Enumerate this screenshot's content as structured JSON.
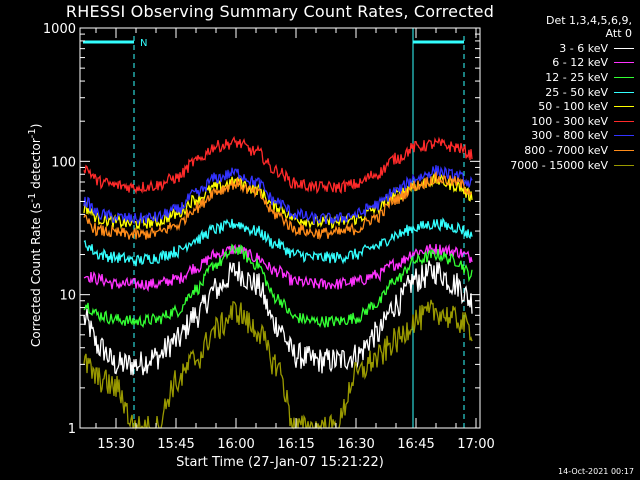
{
  "chart_data": {
    "type": "line",
    "title": "RHESSI Observing Summary Count Rates, Corrected",
    "xlabel": "Start Time (27-Jan-07 15:21:22)",
    "ylabel_main": "Corrected Count Rate (s",
    "ylabel_sup1": "-1",
    "ylabel_mid": " detector",
    "ylabel_sup2": "-1",
    "ylabel_end": ")",
    "y_scale": "log",
    "ylim": [
      1,
      1000
    ],
    "y_ticks": [
      "1",
      "10",
      "100",
      "1000"
    ],
    "xlim": [
      "15:21",
      "17:01"
    ],
    "x_ticks": [
      "15:30",
      "15:45",
      "16:00",
      "16:15",
      "16:30",
      "16:45",
      "17:00"
    ],
    "grid": false,
    "legend_header": [
      "Det 1,3,4,5,6,9,",
      "Att 0"
    ],
    "legend_placement": "right",
    "night_marker_label": "N",
    "series": [
      {
        "name": "3 - 6 keV",
        "color": "#ffffff",
        "x": [
          "15:22",
          "15:26",
          "15:30",
          "15:35",
          "15:40",
          "15:45",
          "15:50",
          "15:55",
          "16:00",
          "16:05",
          "16:10",
          "16:15",
          "16:20",
          "16:25",
          "16:30",
          "16:35",
          "16:40",
          "16:45",
          "16:50",
          "16:55",
          "16:59"
        ],
        "y": [
          6.5,
          4.0,
          3.0,
          3.0,
          3.4,
          4.5,
          7.0,
          11,
          15,
          12,
          6.0,
          3.5,
          3.2,
          3.2,
          3.5,
          5.0,
          8.5,
          13,
          15,
          12,
          9.0
        ]
      },
      {
        "name": "6 - 12 keV",
        "color": "#ff33ff",
        "x": [
          "15:22",
          "15:26",
          "15:30",
          "15:35",
          "15:40",
          "15:45",
          "15:50",
          "15:55",
          "16:00",
          "16:05",
          "16:10",
          "16:15",
          "16:20",
          "16:25",
          "16:30",
          "16:35",
          "16:40",
          "16:45",
          "16:50",
          "16:55",
          "16:59"
        ],
        "y": [
          14,
          13,
          12,
          12,
          12,
          13,
          16,
          20,
          22,
          19,
          15,
          12.5,
          12,
          12,
          12.5,
          14,
          17,
          21,
          22,
          21,
          19
        ]
      },
      {
        "name": "12 - 25 keV",
        "color": "#33ff33",
        "x": [
          "15:22",
          "15:26",
          "15:30",
          "15:35",
          "15:40",
          "15:45",
          "15:50",
          "15:55",
          "16:00",
          "16:05",
          "16:10",
          "16:15",
          "16:20",
          "16:25",
          "16:30",
          "16:35",
          "16:40",
          "16:45",
          "16:50",
          "16:55",
          "16:59"
        ],
        "y": [
          8.5,
          7.0,
          6.5,
          6.3,
          6.5,
          7.5,
          11,
          17,
          22,
          17,
          9.5,
          6.7,
          6.3,
          6.3,
          6.7,
          8.5,
          13,
          18,
          20,
          18,
          14
        ]
      },
      {
        "name": "25 - 50 keV",
        "color": "#33ffff",
        "x": [
          "15:22",
          "15:26",
          "15:30",
          "15:35",
          "15:40",
          "15:45",
          "15:50",
          "15:55",
          "16:00",
          "16:05",
          "16:10",
          "16:15",
          "16:20",
          "16:25",
          "16:30",
          "16:35",
          "16:40",
          "16:45",
          "16:50",
          "16:55",
          "16:59"
        ],
        "y": [
          24,
          20,
          19,
          18,
          19,
          21,
          26,
          31,
          34,
          30,
          24,
          20,
          19,
          19,
          20,
          23,
          28,
          32,
          34,
          32,
          28
        ]
      },
      {
        "name": "50 - 100 keV",
        "color": "#ffff00",
        "x": [
          "15:22",
          "15:26",
          "15:30",
          "15:35",
          "15:40",
          "15:45",
          "15:50",
          "15:55",
          "16:00",
          "16:05",
          "16:10",
          "16:15",
          "16:20",
          "16:25",
          "16:30",
          "16:35",
          "16:40",
          "16:45",
          "16:50",
          "16:55",
          "16:59"
        ],
        "y": [
          45,
          37,
          35,
          34,
          35,
          40,
          52,
          64,
          70,
          62,
          46,
          37,
          35,
          35,
          37,
          44,
          56,
          66,
          72,
          66,
          55
        ]
      },
      {
        "name": "100 - 300 keV",
        "color": "#ff2a2a",
        "x": [
          "15:22",
          "15:26",
          "15:30",
          "15:35",
          "15:40",
          "15:45",
          "15:50",
          "15:55",
          "16:00",
          "16:05",
          "16:10",
          "16:15",
          "16:20",
          "16:25",
          "16:30",
          "16:35",
          "16:40",
          "16:45",
          "16:50",
          "16:55",
          "16:59"
        ],
        "y": [
          90,
          70,
          66,
          64,
          66,
          75,
          100,
          130,
          138,
          118,
          85,
          68,
          64,
          64,
          67,
          80,
          105,
          128,
          135,
          128,
          112
        ]
      },
      {
        "name": "300 - 800 keV",
        "color": "#3333ff",
        "x": [
          "15:22",
          "15:26",
          "15:30",
          "15:35",
          "15:40",
          "15:45",
          "15:50",
          "15:55",
          "16:00",
          "16:05",
          "16:10",
          "16:15",
          "16:20",
          "16:25",
          "16:30",
          "16:35",
          "16:40",
          "16:45",
          "16:50",
          "16:55",
          "16:59"
        ],
        "y": [
          50,
          40,
          38,
          37,
          38,
          43,
          57,
          75,
          82,
          70,
          50,
          40,
          37,
          37,
          40,
          47,
          60,
          75,
          85,
          78,
          68
        ]
      },
      {
        "name": "800 - 7000 keV",
        "color": "#ff8c1a",
        "x": [
          "15:22",
          "15:26",
          "15:30",
          "15:35",
          "15:40",
          "15:45",
          "15:50",
          "15:55",
          "16:00",
          "16:05",
          "16:10",
          "16:15",
          "16:20",
          "16:25",
          "16:30",
          "16:35",
          "16:40",
          "16:45",
          "16:50",
          "16:55",
          "16:59"
        ],
        "y": [
          36,
          30,
          29,
          28,
          29,
          33,
          45,
          60,
          68,
          58,
          40,
          31,
          29,
          29,
          31,
          38,
          52,
          66,
          74,
          70,
          60
        ]
      },
      {
        "name": "7000 - 15000 keV",
        "color": "#999900",
        "x": [
          "15:22",
          "15:26",
          "15:30",
          "15:35",
          "15:40",
          "15:45",
          "15:50",
          "15:55",
          "16:00",
          "16:05",
          "16:10",
          "16:15",
          "16:20",
          "16:25",
          "16:30",
          "16:35",
          "16:40",
          "16:45",
          "16:50",
          "16:55",
          "16:59"
        ],
        "y": [
          3.0,
          2.3,
          2.0,
          1.0,
          1.0,
          2.2,
          3.3,
          5.5,
          7.5,
          5.5,
          3.0,
          1.0,
          1.0,
          1.0,
          2.5,
          3.3,
          4.5,
          6.5,
          7.5,
          6.5,
          5.5
        ]
      }
    ]
  },
  "footer": {
    "timestamp": "14-Oct-2021 00:17"
  }
}
